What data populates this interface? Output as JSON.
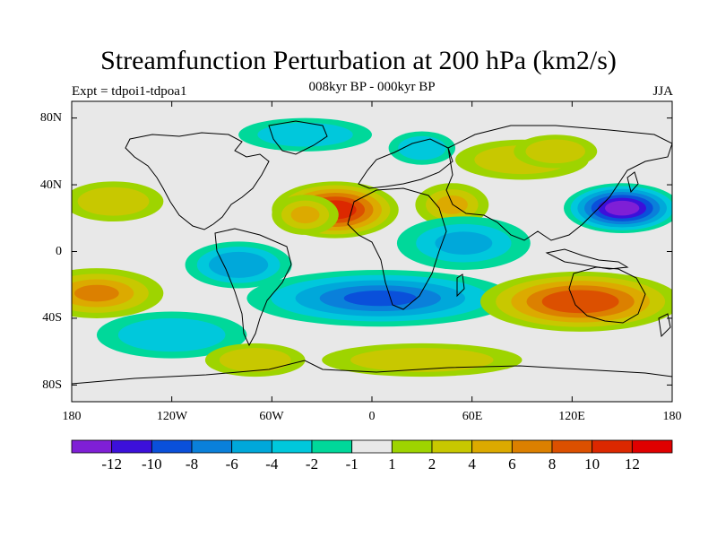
{
  "title": "Streamfunction Perturbation at 200 hPa (km2/s)",
  "subtitle": "008kyr BP - 000kyr BP",
  "left_string": "Expt = tdpoi1-tdpoa1",
  "right_string": "JJA",
  "map": {
    "projection": "cylindrical-equidistant",
    "lon_range": [
      -180,
      180
    ],
    "lat_range": [
      -90,
      90
    ],
    "lat_ticks": [
      {
        "value": 80,
        "label": "80N"
      },
      {
        "value": 40,
        "label": "40N"
      },
      {
        "value": 0,
        "label": "0"
      },
      {
        "value": -40,
        "label": "40S"
      },
      {
        "value": -80,
        "label": "80S"
      }
    ],
    "lon_ticks": [
      {
        "value": -180,
        "label": "180"
      },
      {
        "value": -120,
        "label": "120W"
      },
      {
        "value": -60,
        "label": "60W"
      },
      {
        "value": 0,
        "label": "0"
      },
      {
        "value": 60,
        "label": "60E"
      },
      {
        "value": 120,
        "label": "120E"
      },
      {
        "value": 180,
        "label": "180"
      }
    ],
    "background_value": 0,
    "anomalies": [
      {
        "name": "north-africa-high",
        "lon": -22,
        "lat": 25,
        "rlon": 38,
        "rlat": 17,
        "value": 11
      },
      {
        "name": "atlantic-high",
        "lon": -40,
        "lat": 22,
        "rlon": 20,
        "rlat": 12,
        "value": 4
      },
      {
        "name": "arabia-high",
        "lon": 48,
        "lat": 28,
        "rlon": 22,
        "rlat": 13,
        "value": 4
      },
      {
        "name": "west-pacific-low",
        "lon": 150,
        "lat": 26,
        "rlon": 35,
        "rlat": 15,
        "value": -13
      },
      {
        "name": "south-atlantic-low",
        "lon": 5,
        "lat": -28,
        "rlon": 80,
        "rlat": 17,
        "value": -8
      },
      {
        "name": "south-america-low",
        "lon": -80,
        "lat": -8,
        "rlon": 32,
        "rlat": 14,
        "value": -5
      },
      {
        "name": "indian-ocean-low",
        "lon": 55,
        "lat": 5,
        "rlon": 40,
        "rlat": 16,
        "value": -4
      },
      {
        "name": "australia-high",
        "lon": 125,
        "lat": -30,
        "rlon": 60,
        "rlat": 18,
        "value": 9
      },
      {
        "name": "south-pacific-high",
        "lon": -165,
        "lat": -25,
        "rlon": 40,
        "rlat": 15,
        "value": 6
      },
      {
        "name": "north-pacific-high",
        "lon": -155,
        "lat": 30,
        "rlon": 30,
        "rlat": 12,
        "value": 3
      },
      {
        "name": "south-pacific-low",
        "lon": -120,
        "lat": -50,
        "rlon": 45,
        "rlat": 14,
        "value": -3
      },
      {
        "name": "southern-ocean-high",
        "lon": -70,
        "lat": -65,
        "rlon": 30,
        "rlat": 10,
        "value": 3
      },
      {
        "name": "southern-ocean-high-2",
        "lon": 30,
        "lat": -65,
        "rlon": 60,
        "rlat": 10,
        "value": 3
      },
      {
        "name": "arctic-low",
        "lon": -40,
        "lat": 70,
        "rlon": 40,
        "rlat": 10,
        "value": -3
      },
      {
        "name": "siberia-high",
        "lon": 90,
        "lat": 55,
        "rlon": 40,
        "rlat": 12,
        "value": 3
      },
      {
        "name": "china-high",
        "lon": 110,
        "lat": 60,
        "rlon": 25,
        "rlat": 10,
        "value": 3
      },
      {
        "name": "europe-low",
        "lon": 30,
        "lat": 62,
        "rlon": 20,
        "rlat": 10,
        "value": -3
      }
    ]
  },
  "colorbar": {
    "levels": [
      -12,
      -10,
      -8,
      -6,
      -4,
      -2,
      -1,
      1,
      2,
      4,
      6,
      8,
      10,
      12
    ],
    "level_labels": [
      "-12",
      "-10",
      "-8",
      "-6",
      "-4",
      "-2",
      "-1",
      "1",
      "2",
      "4",
      "6",
      "8",
      "10",
      "12"
    ],
    "colors": [
      "#7f1fd6",
      "#3c10da",
      "#0a50da",
      "#0a80da",
      "#00a8da",
      "#00c8dc",
      "#00d89a",
      "#e8e8e8",
      "#9ed400",
      "#c8c800",
      "#dcaa00",
      "#dc8000",
      "#dc5000",
      "#dc2800",
      "#e00000"
    ]
  }
}
